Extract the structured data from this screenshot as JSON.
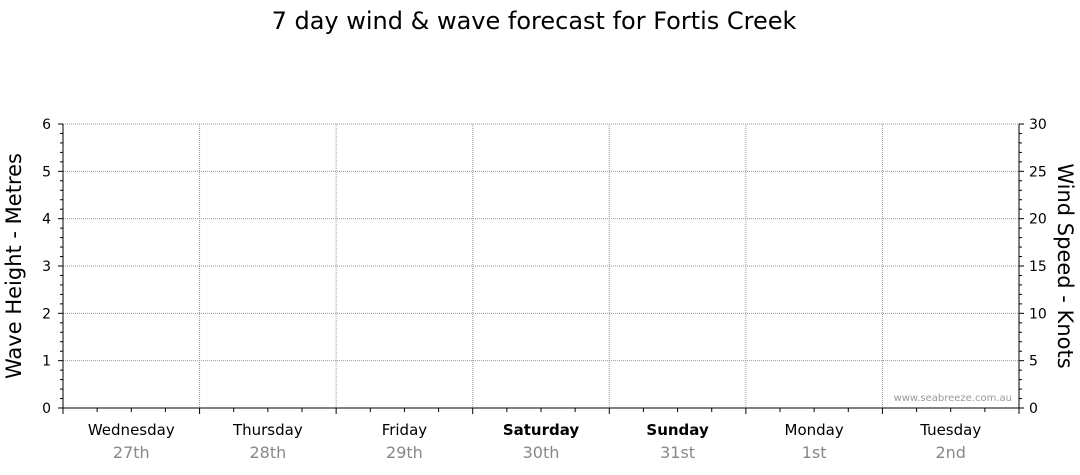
{
  "chart_data": {
    "type": "line",
    "title": "7 day wind & wave forecast for Fortis Creek",
    "ylabel_left": "Wave Height - Metres",
    "ylabel_right": "Wind Speed - Knots",
    "ylim_left": [
      0,
      6
    ],
    "ylim_right": [
      0,
      30
    ],
    "yticks_left": [
      "0",
      "1",
      "2",
      "3",
      "4",
      "5",
      "6"
    ],
    "yticks_right": [
      "0",
      "5",
      "10",
      "15",
      "20",
      "25",
      "30"
    ],
    "grid": true,
    "days": [
      {
        "name": "Wednesday",
        "date": "27th",
        "weekend": false
      },
      {
        "name": "Thursday",
        "date": "28th",
        "weekend": false
      },
      {
        "name": "Friday",
        "date": "29th",
        "weekend": false
      },
      {
        "name": "Saturday",
        "date": "30th",
        "weekend": true
      },
      {
        "name": "Sunday",
        "date": "31st",
        "weekend": true
      },
      {
        "name": "Monday",
        "date": "1st",
        "weekend": false
      },
      {
        "name": "Tuesday",
        "date": "2nd",
        "weekend": false
      }
    ],
    "series": []
  },
  "watermark": "www.seabreeze.com.au"
}
